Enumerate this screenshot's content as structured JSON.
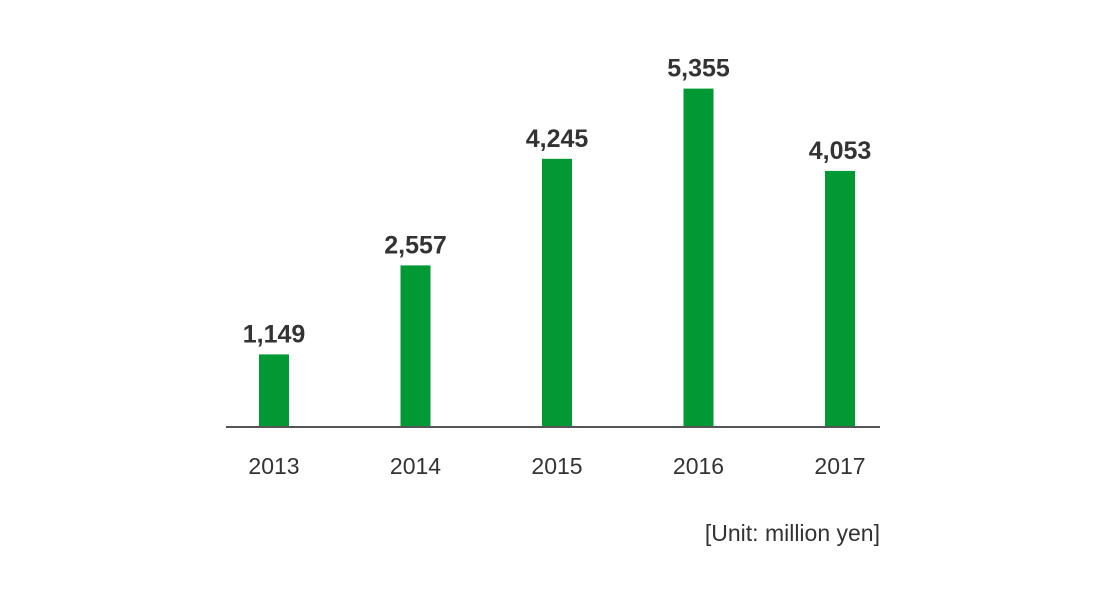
{
  "chart_data": {
    "type": "bar",
    "categories": [
      "2013",
      "2014",
      "2015",
      "2016",
      "2017"
    ],
    "values": [
      1149,
      2557,
      4245,
      5355,
      4053
    ],
    "value_labels": [
      "1,149",
      "2,557",
      "4,245",
      "5,355",
      "4,053"
    ],
    "title": "",
    "xlabel": "",
    "ylabel": "",
    "unit_note": "[Unit: million yen]",
    "ylim": [
      0,
      5600
    ],
    "grid": false,
    "legend": "none",
    "bar_color": "#009933",
    "axis_color": "#555555",
    "text_color": "#333333"
  }
}
